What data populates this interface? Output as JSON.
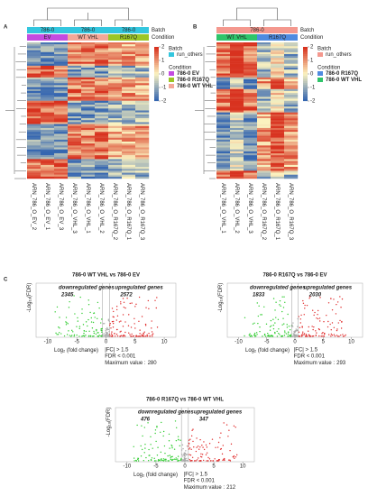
{
  "A": {
    "label": "A",
    "batch_title": "Batch",
    "condition_title": "Condition",
    "batch_groups": [
      "786-0",
      "786-0",
      "786-0"
    ],
    "batch_color": "#33c6de",
    "condition_groups": [
      {
        "name": "EV",
        "color": "#c34ce0",
        "text_color": "#cc33cc"
      },
      {
        "name": "WT VHL",
        "color": "#f4a898",
        "text_color": "#b34a5a"
      },
      {
        "name": "R167Q",
        "color": "#9cc626",
        "text_color": "#6fa320"
      }
    ],
    "scale_ticks": [
      2,
      1,
      0,
      -1,
      -2
    ],
    "legend_batch": "Batch",
    "legend_batch_items": [
      "run_others"
    ],
    "legend_condition": "Condition",
    "legend_condition_items": [
      {
        "name": "786-0 EV",
        "color": "#c34ce0"
      },
      {
        "name": "786-0 R167Q",
        "color": "#9cc626"
      },
      {
        "name": "786-0 WT VHL",
        "color": "#f4a898"
      }
    ],
    "samples": [
      "ARN_786_O_EV_2",
      "ARN_786_O_EV_1",
      "ARN_786_O_EV_3",
      "ARN_786_O_VHL_3",
      "ARN_786_O_VHL_1",
      "ARN_786_O_VHL_2",
      "ARN_786_O_R167Q_2",
      "ARN_786_O_R167Q_1",
      "ARN_786_O_R167Q_3"
    ]
  },
  "B": {
    "label": "B",
    "batch_title": "Batch",
    "condition_title": "Condition",
    "batch_groups": [
      "786-0"
    ],
    "batch_color": "#f4988e",
    "condition_groups": [
      {
        "name": "WT VHL",
        "color": "#2fc46a",
        "text_color": "#1f8c7a"
      },
      {
        "name": "R167Q",
        "color": "#4f8be0",
        "text_color": "#3a6fc4"
      }
    ],
    "scale_ticks": [
      2,
      1,
      0,
      -1,
      -2
    ],
    "legend_batch": "Batch",
    "legend_batch_items": [
      "run_others"
    ],
    "legend_condition": "Condition",
    "legend_condition_items": [
      {
        "name": "786-0 R167Q",
        "color": "#4f8be0"
      },
      {
        "name": "786-0 WT VHL",
        "color": "#2fc46a"
      }
    ],
    "samples": [
      "ARN_786_O_VHL_1",
      "ARN_786_O_VHL_2",
      "ARN_786_O_VHL_3",
      "ARN_786_O_R167Q_2",
      "ARN_786_O_R167Q_1",
      "ARN_786_O_R167Q_3"
    ]
  },
  "C": {
    "label": "C",
    "plots": [
      {
        "title": "786-0 WT VHL vs 786-0 EV",
        "down_label": "downregulated genes",
        "down": 2345,
        "up_label": "upregulated genes",
        "up": 2572,
        "y_label": {
          "main": "-Log",
          "sub": "10",
          "rest": "(FDR)"
        },
        "x_label": {
          "main": "Log",
          "sub": "2",
          "rest": " (fold change)"
        },
        "xlim": [
          -12,
          12
        ],
        "xticks": [
          -10,
          -5,
          0,
          5,
          10
        ],
        "fc": "|FC| > 1.5",
        "fdr": "FDR < 0.001",
        "max_label": "Maximum value :",
        "max": 280
      },
      {
        "title": "786-0 R167Q vs 786-0  EV",
        "down_label": "downregulated genes",
        "down": 1833,
        "up_label": "upregulated genes",
        "up": 2030,
        "y_label": {
          "main": "-Log",
          "sub": "10",
          "rest": "(FDR)"
        },
        "x_label": {
          "main": "Log",
          "sub": "2",
          "rest": " (fold change)"
        },
        "xlim": [
          -12,
          12
        ],
        "xticks": [
          -10,
          -5,
          0,
          5,
          10
        ],
        "fc": "|FC| > 1.5",
        "fdr": "FDR < 0.001",
        "max_label": "Maximum value :",
        "max": 293
      },
      {
        "title": "786-0 R167Q vs 786-0 WT VHL",
        "down_label": "downregulated genes",
        "down": 476,
        "up_label": "upregulated genes",
        "up": 347,
        "y_label": {
          "main": "-Log",
          "sub": "10",
          "rest": "(FDR)"
        },
        "x_label": {
          "main": "Log",
          "sub": "2",
          "rest": " (fold change)"
        },
        "xlim": [
          -12,
          12
        ],
        "xticks": [
          -10,
          -5,
          0,
          5,
          10
        ],
        "fc": "|FC| > 1.5",
        "fdr": "FDR < 0.001",
        "max_label": "Maximum value :",
        "max": 212
      }
    ]
  }
}
